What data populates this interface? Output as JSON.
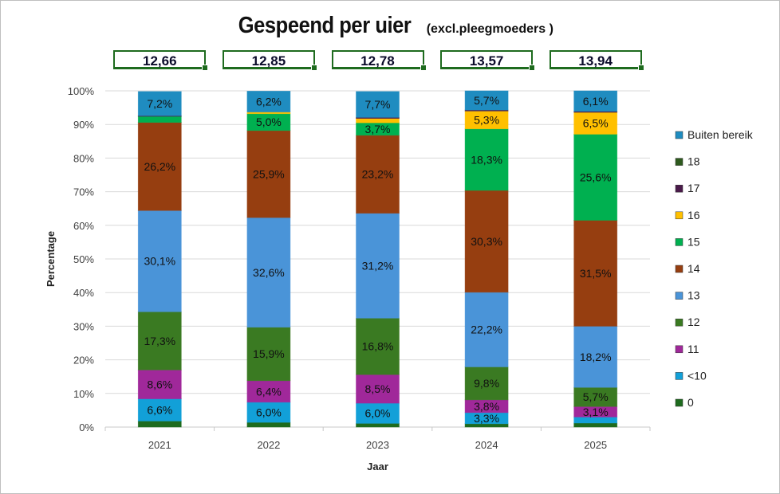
{
  "chart_data": {
    "type": "bar",
    "stacked": "percent",
    "title": "Gespeend per uier",
    "subtitle": "(excl.pleegmoeders )",
    "xlabel": "Jaar",
    "ylabel": "Percentage",
    "ylim": [
      0,
      100
    ],
    "yticks": [
      "0%",
      "10%",
      "20%",
      "30%",
      "40%",
      "50%",
      "60%",
      "70%",
      "80%",
      "90%",
      "100%"
    ],
    "grid": true,
    "legend_position": "right",
    "categories": [
      "2021",
      "2022",
      "2023",
      "2024",
      "2025"
    ],
    "header_values": [
      "12,66",
      "12,85",
      "12,78",
      "13,57",
      "13,94"
    ],
    "series": [
      {
        "name": "0",
        "color": "#1e6b1e",
        "values": [
          1.8,
          1.4,
          1.1,
          1.0,
          1.2
        ],
        "labels": [
          null,
          null,
          null,
          null,
          null
        ]
      },
      {
        "name": "<10",
        "color": "#12a0d8",
        "values": [
          6.6,
          6.0,
          6.0,
          3.3,
          1.8
        ],
        "labels": [
          "6,6%",
          "6,0%",
          "6,0%",
          "3,3%",
          null
        ]
      },
      {
        "name": "11",
        "color": "#a0289a",
        "values": [
          8.6,
          6.4,
          8.5,
          3.8,
          3.1
        ],
        "labels": [
          "8,6%",
          "6,4%",
          "8,5%",
          "3,8%",
          "3,1%"
        ]
      },
      {
        "name": "12",
        "color": "#3a7a22",
        "values": [
          17.3,
          15.9,
          16.8,
          9.8,
          5.7
        ],
        "labels": [
          "17,3%",
          "15,9%",
          "16,8%",
          "9,8%",
          "5,7%"
        ]
      },
      {
        "name": "13",
        "color": "#4a94d8",
        "values": [
          30.1,
          32.6,
          31.2,
          22.2,
          18.2
        ],
        "labels": [
          "30,1%",
          "32,6%",
          "31,2%",
          "22,2%",
          "18,2%"
        ]
      },
      {
        "name": "14",
        "color": "#963e10",
        "values": [
          26.2,
          25.9,
          23.2,
          30.3,
          31.5
        ],
        "labels": [
          "26,2%",
          "25,9%",
          "23,2%",
          "30,3%",
          "31,5%"
        ]
      },
      {
        "name": "15",
        "color": "#00b050",
        "values": [
          1.8,
          5.0,
          3.7,
          18.3,
          25.6
        ],
        "labels": [
          null,
          "5,0%",
          "3,7%",
          "18,3%",
          "25,6%"
        ]
      },
      {
        "name": "16",
        "color": "#ffc000",
        "values": [
          0,
          0.5,
          1.3,
          5.3,
          6.5
        ],
        "labels": [
          null,
          null,
          null,
          "5,3%",
          "6,5%"
        ]
      },
      {
        "name": "17",
        "color": "#4a1a4a",
        "values": [
          0.2,
          0,
          0.3,
          0.3,
          0.3
        ],
        "labels": [
          null,
          null,
          null,
          null,
          null
        ]
      },
      {
        "name": "18",
        "color": "#2e5a1e",
        "values": [
          0,
          0,
          0,
          0,
          0
        ],
        "labels": [
          null,
          null,
          null,
          null,
          null
        ]
      },
      {
        "name": "Buiten bereik",
        "color": "#1f8cc0",
        "values": [
          7.2,
          6.2,
          7.7,
          5.7,
          6.1
        ],
        "labels": [
          "7,2%",
          "6,2%",
          "7,7%",
          "5,7%",
          "6,1%"
        ]
      }
    ]
  }
}
